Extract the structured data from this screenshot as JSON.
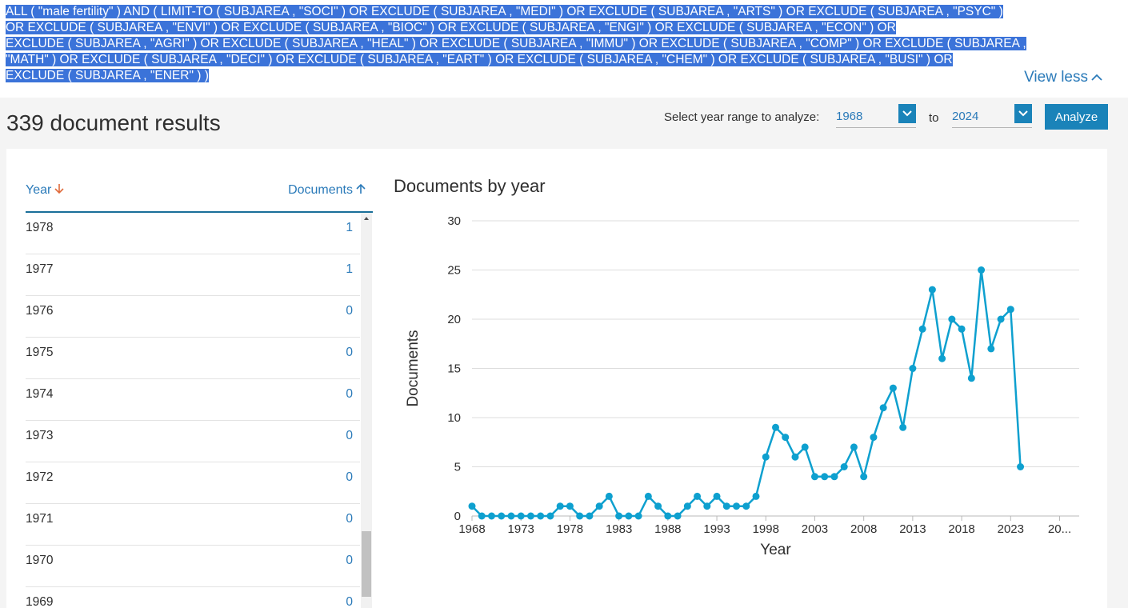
{
  "query": {
    "lines": [
      "ALL ( \"male fertility\" )  AND  ( LIMIT-TO ( SUBJAREA ,  \"SOCI\" )  OR  EXCLUDE ( SUBJAREA ,  \"MEDI\" )  OR  EXCLUDE ( SUBJAREA ,  \"ARTS\" )  OR  EXCLUDE ( SUBJAREA ,  \"PSYC\" )",
      "OR  EXCLUDE ( SUBJAREA ,  \"ENVI\" )  OR  EXCLUDE ( SUBJAREA ,  \"BIOC\" )  OR  EXCLUDE ( SUBJAREA ,  \"ENGI\" )  OR  EXCLUDE ( SUBJAREA ,  \"ECON\" )  OR",
      "EXCLUDE ( SUBJAREA ,  \"AGRI\" )  OR  EXCLUDE ( SUBJAREA ,  \"HEAL\" )  OR  EXCLUDE ( SUBJAREA ,  \"IMMU\" )  OR  EXCLUDE ( SUBJAREA ,  \"COMP\" )  OR  EXCLUDE ( SUBJAREA ,",
      "\"MATH\" )  OR  EXCLUDE ( SUBJAREA ,  \"DECI\" )  OR  EXCLUDE ( SUBJAREA ,  \"EART\" )  OR  EXCLUDE ( SUBJAREA ,  \"CHEM\" )  OR  EXCLUDE ( SUBJAREA ,  \"BUSI\" )  OR",
      "EXCLUDE ( SUBJAREA ,  \"ENER\" ) )"
    ],
    "view_less_label": "View less"
  },
  "results": {
    "title": "339 document results"
  },
  "year_range": {
    "label": "Select year range to analyze:",
    "from_value": "1968",
    "to_label": "to",
    "to_value": "2024",
    "analyze_label": "Analyze"
  },
  "table": {
    "year_header": "Year",
    "documents_header": "Documents",
    "rows": [
      {
        "year": "1978",
        "count": "1"
      },
      {
        "year": "1977",
        "count": "1"
      },
      {
        "year": "1976",
        "count": "0"
      },
      {
        "year": "1975",
        "count": "0"
      },
      {
        "year": "1974",
        "count": "0"
      },
      {
        "year": "1973",
        "count": "0"
      },
      {
        "year": "1972",
        "count": "0"
      },
      {
        "year": "1971",
        "count": "0"
      },
      {
        "year": "1970",
        "count": "0"
      },
      {
        "year": "1969",
        "count": "0"
      }
    ]
  },
  "colors": {
    "accent": "#1a83b9",
    "link": "#2a7ab9",
    "series": "#0ea0cf",
    "highlight": "#3b73d9"
  },
  "chart_data": {
    "type": "line",
    "title": "Documents by year",
    "xlabel": "Year",
    "ylabel": "Documents",
    "ylim": [
      0,
      30
    ],
    "xlim": [
      1968,
      2030
    ],
    "yticks": [
      0,
      5,
      10,
      15,
      20,
      25,
      30
    ],
    "xticks": [
      "1968",
      "1973",
      "1978",
      "1983",
      "1988",
      "1993",
      "1998",
      "2003",
      "2008",
      "2013",
      "2018",
      "2023",
      "20..."
    ],
    "grid": true,
    "x": [
      1968,
      1969,
      1970,
      1971,
      1972,
      1973,
      1974,
      1975,
      1976,
      1977,
      1978,
      1979,
      1980,
      1981,
      1982,
      1983,
      1984,
      1985,
      1986,
      1987,
      1988,
      1989,
      1990,
      1991,
      1992,
      1993,
      1994,
      1995,
      1996,
      1997,
      1998,
      1999,
      2000,
      2001,
      2002,
      2003,
      2004,
      2005,
      2006,
      2007,
      2008,
      2009,
      2010,
      2011,
      2012,
      2013,
      2014,
      2015,
      2016,
      2017,
      2018,
      2019,
      2020,
      2021,
      2022,
      2023,
      2024
    ],
    "values": [
      1,
      0,
      0,
      0,
      0,
      0,
      0,
      0,
      0,
      1,
      1,
      0,
      0,
      1,
      2,
      0,
      0,
      0,
      2,
      1,
      0,
      0,
      1,
      2,
      1,
      2,
      1,
      1,
      1,
      2,
      6,
      9,
      8,
      6,
      7,
      4,
      4,
      4,
      5,
      7,
      4,
      8,
      11,
      13,
      9,
      15,
      19,
      23,
      16,
      20,
      19,
      14,
      25,
      17,
      20,
      21,
      5
    ]
  }
}
